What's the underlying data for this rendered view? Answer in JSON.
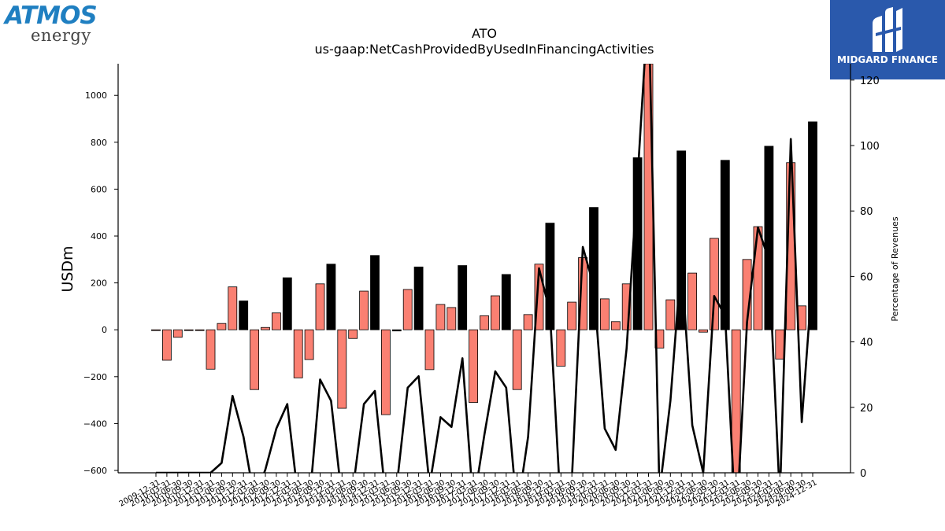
{
  "logos": {
    "left": {
      "line1": "ATMOS",
      "line2": "energy"
    },
    "right": {
      "name": "MIDGARD FINANCE"
    }
  },
  "chart_data": {
    "type": "bar",
    "title": "ATO",
    "subtitle": "us-gaap:NetCashProvidedByUsedInFinancingActivities",
    "ylabel": "USDm",
    "y2label": "Percentage of Revenues",
    "ylim": [
      -610,
      1135
    ],
    "y2lim": [
      0,
      125
    ],
    "yticks": [
      -600,
      -400,
      -200,
      0,
      200,
      400,
      600,
      800,
      1000
    ],
    "y2ticks": [
      0,
      20,
      40,
      60,
      80,
      100,
      120
    ],
    "grid": false,
    "colors": {
      "quarter": "#fa8072",
      "annual": "#000000",
      "line": "#000000"
    },
    "categories": [
      "2009-12-31",
      "2010-03-31",
      "2010-06-30",
      "2010-09-30",
      "2010-12-31",
      "2011-03-31",
      "2011-06-30",
      "2011-09-30",
      "2011-12-31",
      "2012-03-31",
      "2012-06-30",
      "2012-09-30",
      "2012-12-31",
      "2013-03-31",
      "2013-06-30",
      "2013-09-30",
      "2013-12-31",
      "2014-03-31",
      "2014-06-30",
      "2014-09-30",
      "2014-12-31",
      "2015-03-31",
      "2015-06-30",
      "2015-09-30",
      "2015-12-31",
      "2016-03-31",
      "2016-06-30",
      "2016-09-30",
      "2016-12-31",
      "2017-03-31",
      "2017-06-30",
      "2017-09-30",
      "2017-12-31",
      "2018-03-31",
      "2018-06-30",
      "2018-09-30",
      "2018-12-31",
      "2019-03-31",
      "2019-06-30",
      "2019-09-30",
      "2019-12-31",
      "2020-03-31",
      "2020-06-30",
      "2020-09-30",
      "2020-12-31",
      "2021-03-31",
      "2021-06-30",
      "2021-09-30",
      "2021-12-31",
      "2022-03-31",
      "2022-06-30",
      "2022-09-30",
      "2022-12-31",
      "2023-03-31",
      "2023-06-30",
      "2023-09-30",
      "2023-12-31",
      "2024-03-31",
      "2024-06-30",
      "2024-09-30",
      "2024-12-31"
    ],
    "tick_labels": [
      "2009-12-31",
      "2010-03-31",
      "2010-06-30",
      "2010-09-30",
      "2010-12-31",
      "2011-03-31",
      "2011-06-30",
      "2011-09-30",
      "2011-12-31",
      "2012-03-31",
      "2012-06-30",
      "2012-09-30",
      "2012-12-31",
      "2013-03-31",
      "2013-06-30",
      "2013-09-30",
      "2013-12-31",
      "2014-03-31",
      "2014-06-30",
      "2014-09-30",
      "2014-12-31",
      "2015-03-31",
      "2015-06-30",
      "2015-09-30",
      "2015-12-31",
      "2016-03-31",
      "2016-06-30",
      "2016-09-30",
      "2016-12-31",
      "2017-03-31",
      "2017-06-30",
      "2017-09-30",
      "2017-12-31",
      "2018-03-31",
      "2018-06-30",
      "2018-09-30",
      "2018-12-31",
      "2019-03-31",
      "2019-06-30",
      "2019-09-30",
      "2019-12-31",
      "2020-03-31",
      "2020-06-30",
      "2020-09-30",
      "2020-12-31",
      "2021-03-31",
      "2021-06-30",
      "2021-09-30",
      "2021-12-31",
      "2022-03-31",
      "2022-06-30",
      "2022-09-30",
      "2022-12-31",
      "2023-03-31",
      "2023-06-30",
      "2023-09-30",
      "2023-12-31",
      "2024-03-31",
      "2024-06-30",
      "2024-09-30",
      "2024-12-31"
    ],
    "bars": [
      {
        "v": -2,
        "annual": false
      },
      {
        "v": -130,
        "annual": false
      },
      {
        "v": -32,
        "annual": false
      },
      {
        "v": -2,
        "annual": false
      },
      {
        "v": -3,
        "annual": false
      },
      {
        "v": -168,
        "annual": false
      },
      {
        "v": 27,
        "annual": false
      },
      {
        "v": 183,
        "annual": false
      },
      {
        "v": 123,
        "annual": true
      },
      {
        "v": -255,
        "annual": false
      },
      {
        "v": 10,
        "annual": false
      },
      {
        "v": 72,
        "annual": false
      },
      {
        "v": 222,
        "annual": true
      },
      {
        "v": -205,
        "annual": false
      },
      {
        "v": -127,
        "annual": false
      },
      {
        "v": 196,
        "annual": false
      },
      {
        "v": 280,
        "annual": true
      },
      {
        "v": -335,
        "annual": false
      },
      {
        "v": -37,
        "annual": false
      },
      {
        "v": 165,
        "annual": false
      },
      {
        "v": 317,
        "annual": true
      },
      {
        "v": -362,
        "annual": false
      },
      {
        "v": -5,
        "annual": true
      },
      {
        "v": 172,
        "annual": false
      },
      {
        "v": 268,
        "annual": true
      },
      {
        "v": -170,
        "annual": false
      },
      {
        "v": 108,
        "annual": false
      },
      {
        "v": 95,
        "annual": false
      },
      {
        "v": 274,
        "annual": true
      },
      {
        "v": -310,
        "annual": false
      },
      {
        "v": 60,
        "annual": false
      },
      {
        "v": 145,
        "annual": false
      },
      {
        "v": 236,
        "annual": true
      },
      {
        "v": -255,
        "annual": false
      },
      {
        "v": 65,
        "annual": false
      },
      {
        "v": 280,
        "annual": false
      },
      {
        "v": 455,
        "annual": true
      },
      {
        "v": -155,
        "annual": false
      },
      {
        "v": 118,
        "annual": false
      },
      {
        "v": 308,
        "annual": false
      },
      {
        "v": 522,
        "annual": true
      },
      {
        "v": 132,
        "annual": false
      },
      {
        "v": 35,
        "annual": false
      },
      {
        "v": 196,
        "annual": false
      },
      {
        "v": 734,
        "annual": true
      },
      {
        "v": 1135,
        "annual": false
      },
      {
        "v": -78,
        "annual": false
      },
      {
        "v": 128,
        "annual": false
      },
      {
        "v": 763,
        "annual": true
      },
      {
        "v": 242,
        "annual": false
      },
      {
        "v": -10,
        "annual": false
      },
      {
        "v": 390,
        "annual": false
      },
      {
        "v": 723,
        "annual": true
      },
      {
        "v": -610,
        "annual": false
      },
      {
        "v": 300,
        "annual": false
      },
      {
        "v": 440,
        "annual": false
      },
      {
        "v": 783,
        "annual": true
      },
      {
        "v": -125,
        "annual": false
      },
      {
        "v": 713,
        "annual": false
      },
      {
        "v": 102,
        "annual": false
      },
      {
        "v": 887,
        "annual": true
      }
    ],
    "line_pct": [
      0,
      0,
      0,
      0,
      0,
      0,
      3,
      23.5,
      11,
      -8,
      1,
      13.5,
      21,
      -8,
      -10,
      28.5,
      22,
      -8,
      -5,
      21,
      25,
      -8,
      -4,
      26,
      29.5,
      -4,
      17,
      14,
      35,
      -10,
      11.5,
      31,
      26,
      -12,
      11,
      62.5,
      49,
      -12,
      -2,
      69,
      57,
      13.5,
      7,
      38,
      90,
      145,
      -6,
      22,
      65,
      14.5,
      0,
      54,
      48,
      -18,
      46,
      75,
      65,
      -8,
      102,
      15.5,
      61
    ]
  }
}
